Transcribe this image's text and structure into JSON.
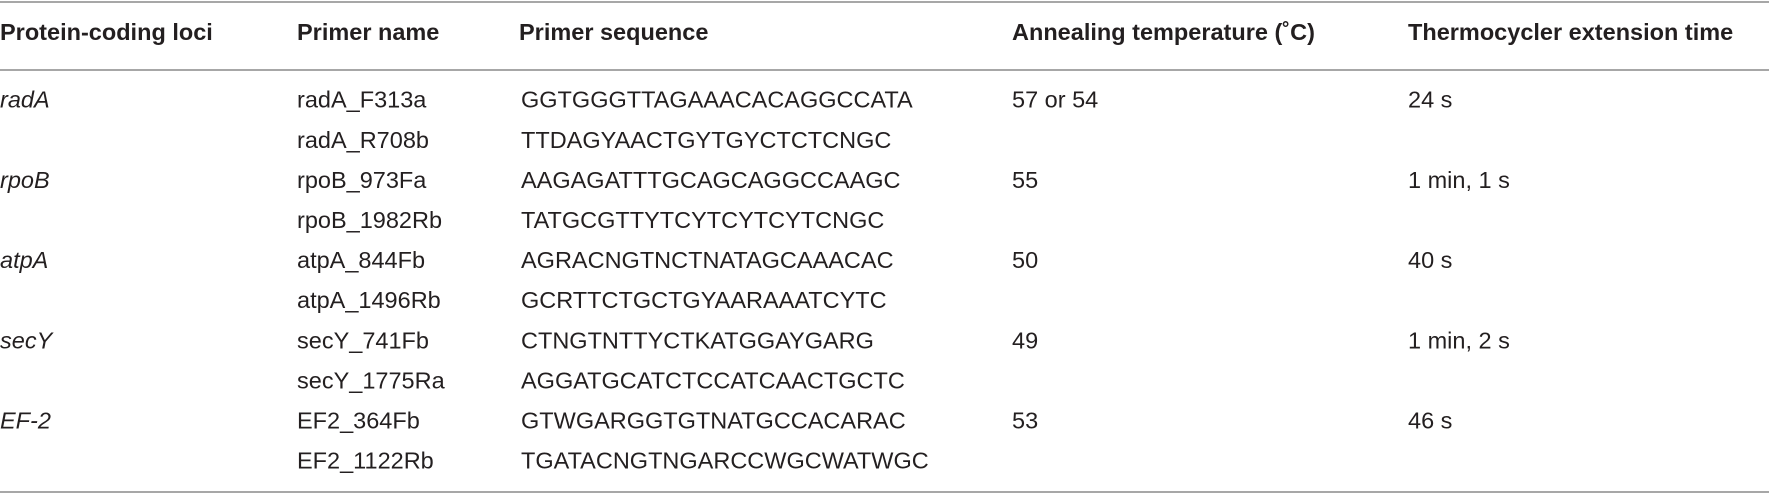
{
  "table": {
    "header": [
      "Protein-coding loci",
      "Primer name",
      "Primer sequence",
      "Annealing temperature (˚C)",
      "Thermocycler extension time"
    ],
    "groups": [
      {
        "locus": "radA",
        "temperature": "57 or 54",
        "time": "24 s",
        "primers": [
          {
            "name": "radA_F313a",
            "sequence": "GGTGGGTTAGAAACACAGGCCATA"
          },
          {
            "name": "radA_R708b",
            "sequence": "TTDAGYAACTGYTGYCTCTCNGC"
          }
        ]
      },
      {
        "locus": "rpoB",
        "temperature": "55",
        "time": "1 min, 1 s",
        "primers": [
          {
            "name": "rpoB_973Fa",
            "sequence": "AAGAGATTTGCAGCAGGCCAAGC"
          },
          {
            "name": "rpoB_1982Rb",
            "sequence": "TATGCGTTYTCYTCYTCYTCNGC"
          }
        ]
      },
      {
        "locus": "atpA",
        "temperature": "50",
        "time": "40 s",
        "primers": [
          {
            "name": "atpA_844Fb",
            "sequence": "AGRACNGTNCTNATAGCAAACAC"
          },
          {
            "name": "atpA_1496Rb",
            "sequence": "GCRTTCTGCTGYAARAAATCYTC"
          }
        ]
      },
      {
        "locus": "secY",
        "temperature": "49",
        "time": "1 min, 2 s",
        "primers": [
          {
            "name": "secY_741Fb",
            "sequence": "CTNGTNTTYCTKATGGAYGARG"
          },
          {
            "name": "secY_1775Ra",
            "sequence": "AGGATGCATCTCCATCAACTGCTC"
          }
        ]
      },
      {
        "locus": "EF-2",
        "temperature": "53",
        "time": "46 s",
        "primers": [
          {
            "name": "EF2_364Fb",
            "sequence": "GTWGARGGTGTNATGCCACARAC"
          },
          {
            "name": "EF2_1122Rb",
            "sequence": "TGATACNGTNGARCCWGCWATWGC"
          }
        ]
      }
    ]
  }
}
